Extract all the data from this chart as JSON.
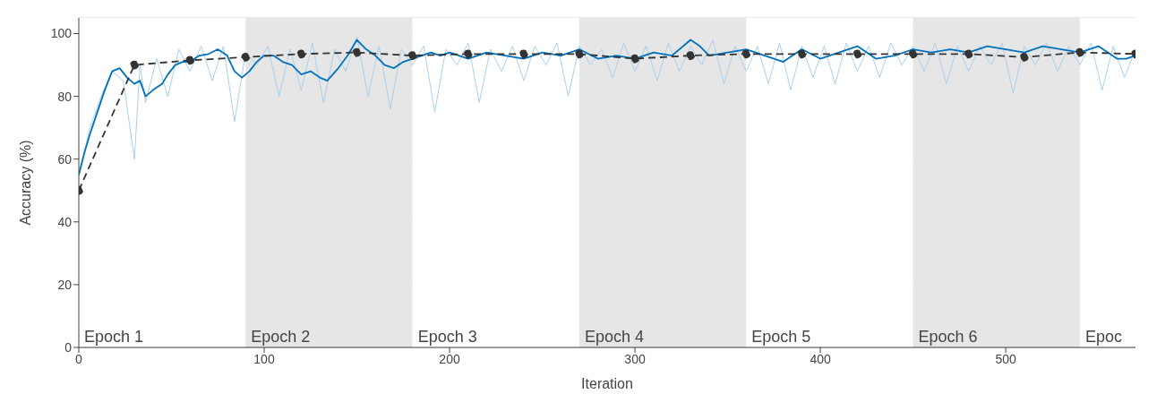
{
  "chart_data": {
    "type": "line",
    "xlabel": "Iteration",
    "ylabel": "Accuracy (%)",
    "xlim": [
      0,
      570
    ],
    "xticks": [
      0,
      100,
      200,
      300,
      400,
      500
    ],
    "ylim": [
      0,
      105
    ],
    "yticks": [
      0,
      20,
      40,
      60,
      80,
      100
    ],
    "grid": "y",
    "bands": [
      {
        "axis": "x",
        "from": 0,
        "to": 90,
        "label": "Epoch 1",
        "color": "#ffffff"
      },
      {
        "axis": "x",
        "from": 90,
        "to": 180,
        "label": "Epoch 2",
        "color": "#e6e6e6"
      },
      {
        "axis": "x",
        "from": 180,
        "to": 270,
        "label": "Epoch 3",
        "color": "#ffffff"
      },
      {
        "axis": "x",
        "from": 270,
        "to": 360,
        "label": "Epoch 4",
        "color": "#e6e6e6"
      },
      {
        "axis": "x",
        "from": 360,
        "to": 450,
        "label": "Epoch 5",
        "color": "#ffffff"
      },
      {
        "axis": "x",
        "from": 450,
        "to": 540,
        "label": "Epoch 6",
        "color": "#e6e6e6"
      },
      {
        "axis": "x",
        "from": 540,
        "to": 570,
        "label": "Epoc",
        "color": "#ffffff"
      }
    ],
    "series": [
      {
        "color": "#a9d0ee",
        "line_style": "solid",
        "marker": "none",
        "x": [
          0,
          6,
          12,
          18,
          24,
          30,
          33,
          36,
          42,
          48,
          54,
          60,
          66,
          72,
          78,
          84,
          90,
          96,
          102,
          108,
          114,
          120,
          126,
          132,
          138,
          144,
          150,
          156,
          162,
          168,
          174,
          180,
          186,
          192,
          198,
          204,
          210,
          216,
          222,
          228,
          234,
          240,
          246,
          252,
          258,
          264,
          270,
          276,
          282,
          288,
          294,
          300,
          306,
          312,
          318,
          324,
          330,
          336,
          342,
          348,
          354,
          360,
          366,
          372,
          378,
          384,
          390,
          396,
          402,
          408,
          414,
          420,
          426,
          432,
          438,
          444,
          450,
          456,
          462,
          468,
          474,
          480,
          486,
          492,
          498,
          504,
          510,
          516,
          522,
          528,
          534,
          540,
          546,
          552,
          558,
          564,
          570
        ],
        "values": [
          55,
          70,
          80,
          88,
          85,
          60,
          90,
          78,
          92,
          80,
          95,
          88,
          96,
          85,
          96,
          72,
          94,
          90,
          96,
          80,
          95,
          82,
          97,
          78,
          95,
          88,
          99,
          80,
          96,
          76,
          95,
          90,
          96,
          75,
          95,
          90,
          97,
          78,
          95,
          88,
          96,
          85,
          96,
          90,
          97,
          80,
          96,
          90,
          95,
          86,
          97,
          88,
          96,
          85,
          97,
          88,
          96,
          90,
          98,
          84,
          96,
          88,
          96,
          84,
          97,
          82,
          96,
          86,
          96,
          84,
          97,
          88,
          96,
          86,
          97,
          90,
          96,
          88,
          97,
          84,
          96,
          88,
          96,
          90,
          97,
          81,
          96,
          90,
          97,
          88,
          96,
          90,
          97,
          82,
          96,
          86,
          95
        ]
      },
      {
        "color": "#0072bd",
        "line_style": "solid",
        "marker": "none",
        "x": [
          0,
          3,
          6,
          10,
          14,
          18,
          22,
          26,
          30,
          33,
          36,
          40,
          45,
          48,
          52,
          56,
          60,
          65,
          70,
          75,
          80,
          84,
          88,
          92,
          96,
          100,
          105,
          110,
          115,
          120,
          125,
          130,
          134,
          140,
          145,
          150,
          155,
          160,
          165,
          170,
          175,
          180,
          185,
          190,
          195,
          200,
          210,
          220,
          230,
          240,
          250,
          260,
          270,
          280,
          290,
          300,
          310,
          320,
          330,
          335,
          340,
          350,
          360,
          370,
          380,
          390,
          400,
          410,
          420,
          430,
          440,
          450,
          460,
          470,
          480,
          490,
          500,
          510,
          520,
          530,
          540,
          550,
          560,
          565,
          570
        ],
        "values": [
          55,
          62,
          68,
          75,
          82,
          88,
          89,
          86,
          84,
          85,
          80,
          82,
          84,
          87,
          90,
          91,
          91,
          93,
          93.5,
          95,
          93,
          88,
          86,
          88,
          91,
          93,
          93,
          91,
          90,
          87,
          88,
          86,
          85,
          89,
          93,
          98,
          95,
          93,
          90,
          89,
          91,
          92,
          93,
          94,
          93,
          94,
          92,
          94,
          93,
          92,
          94,
          93,
          95,
          92,
          93,
          92,
          94,
          93,
          98,
          96,
          93,
          94,
          95,
          93,
          91,
          95,
          92,
          94,
          96,
          92,
          93,
          95,
          94,
          95,
          94,
          96,
          95,
          94,
          96,
          95,
          94,
          96,
          92,
          92,
          93
        ]
      },
      {
        "color": "#333333",
        "line_style": "dashed",
        "marker": "circle",
        "x": [
          0,
          30,
          60,
          90,
          120,
          150,
          180,
          210,
          240,
          270,
          300,
          330,
          360,
          390,
          420,
          450,
          480,
          510,
          540,
          570
        ],
        "values": [
          50,
          90,
          91.5,
          92.5,
          93.5,
          94,
          93,
          93.5,
          93.5,
          93.5,
          92,
          93,
          93.5,
          93.5,
          93.5,
          93.5,
          93.5,
          92.5,
          94,
          93.5
        ]
      }
    ]
  }
}
